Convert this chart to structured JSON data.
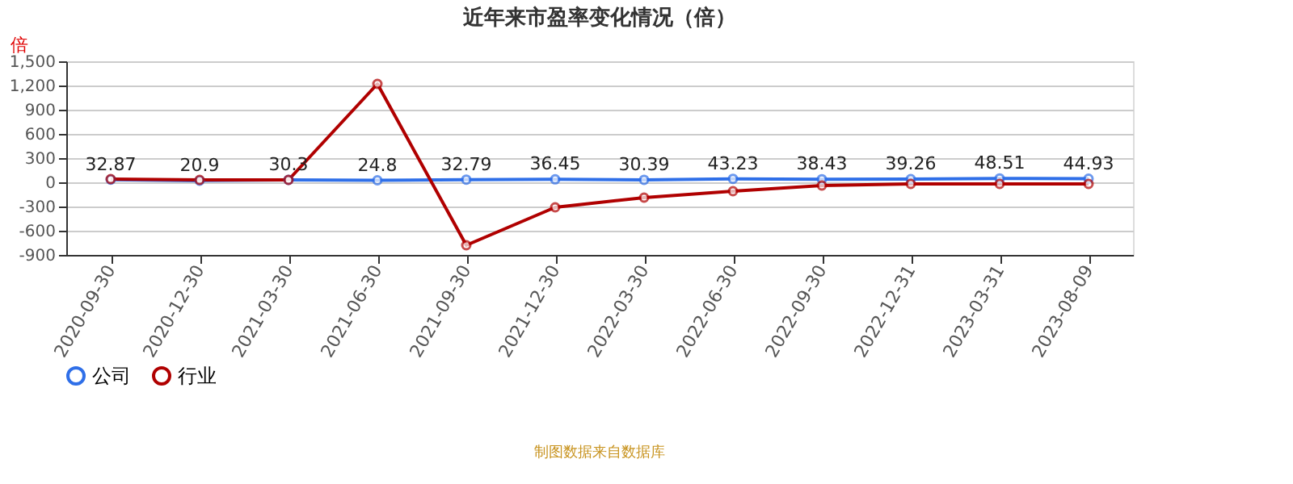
{
  "chart_data": {
    "type": "line",
    "title": "近年来市盈率变化情况（倍）",
    "ylabel": "倍",
    "categories": [
      "2020-09-30",
      "2020-12-30",
      "2021-03-30",
      "2021-06-30",
      "2021-09-30",
      "2021-12-30",
      "2022-03-30",
      "2022-06-30",
      "2022-09-30",
      "2022-12-31",
      "2023-03-31",
      "2023-08-09"
    ],
    "series": [
      {
        "name": "公司",
        "color": "#2f6fe8",
        "values": [
          32.87,
          20.9,
          30.3,
          24.8,
          32.79,
          36.45,
          30.39,
          43.23,
          38.43,
          39.26,
          48.51,
          44.93
        ],
        "value_labels": [
          "32.87",
          "20.9",
          "30.3",
          "24.8",
          "32.79",
          "36.45",
          "30.39",
          "43.23",
          "38.43",
          "39.26",
          "48.51",
          "44.93"
        ]
      },
      {
        "name": "行业",
        "color": "#b00000",
        "values": [
          40,
          30,
          30,
          1220,
          -780,
          -310,
          -190,
          -110,
          -40,
          -20,
          -20,
          -20
        ]
      }
    ],
    "ylim": [
      -900,
      1500
    ],
    "yticks": [
      -900,
      -600,
      -300,
      0,
      300,
      600,
      900,
      {
        "value": 1200,
        "label": "1,200"
      },
      {
        "value": 1500,
        "label": "1,500"
      }
    ],
    "grid": "y",
    "legend": "bottom",
    "marker": "circle",
    "line_style": "solid",
    "annotations": [
      "制图数据来自数据库"
    ]
  }
}
